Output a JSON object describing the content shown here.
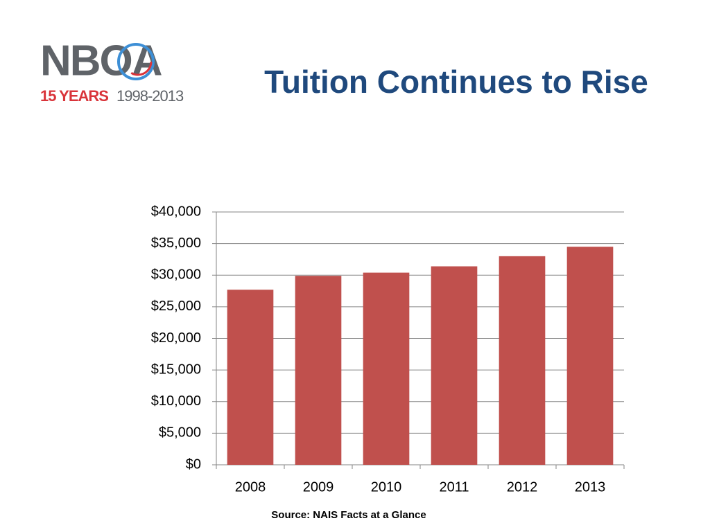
{
  "logo": {
    "name": "NBOA",
    "years": "15 YEARS",
    "span": "1998-2013"
  },
  "chart_data": {
    "type": "bar",
    "title": "Tuition Continues to Rise",
    "source": "Source:  NAIS Facts at a Glance",
    "categories": [
      "2008",
      "2009",
      "2010",
      "2011",
      "2012",
      "2013"
    ],
    "values": [
      27700,
      29900,
      30400,
      31400,
      33000,
      34500
    ],
    "color": "#c0504d",
    "ylim": [
      0,
      40000
    ],
    "yticks": [
      {
        "value": 0,
        "label": "$0"
      },
      {
        "value": 5000,
        "label": "$5,000"
      },
      {
        "value": 10000,
        "label": "$10,000"
      },
      {
        "value": 15000,
        "label": "$15,000"
      },
      {
        "value": 20000,
        "label": "$20,000"
      },
      {
        "value": 25000,
        "label": "$25,000"
      },
      {
        "value": 30000,
        "label": "$30,000"
      },
      {
        "value": 35000,
        "label": "$35,000"
      },
      {
        "value": 40000,
        "label": "$40,000"
      }
    ],
    "grid": true
  }
}
